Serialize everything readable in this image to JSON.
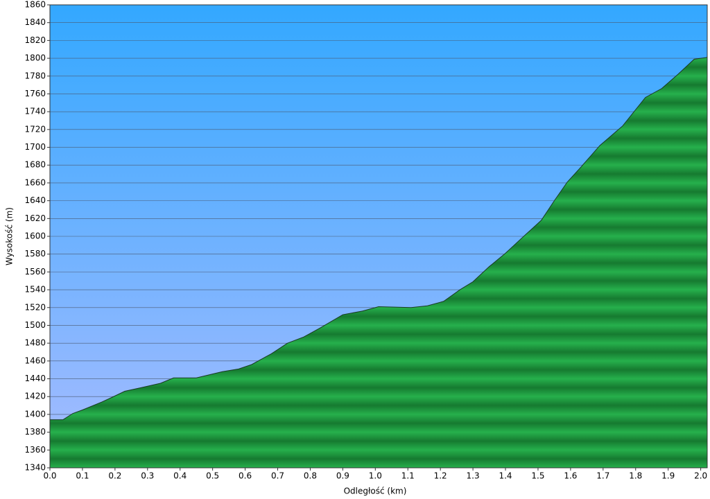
{
  "chart_data": {
    "type": "area",
    "x_label": "Odległość   (km)",
    "y_label": "Wysokość (m)",
    "x": [
      0,
      0.04,
      0.07,
      0.1,
      0.16,
      0.19,
      0.23,
      0.28,
      0.34,
      0.38,
      0.45,
      0.53,
      0.58,
      0.62,
      0.68,
      0.73,
      0.78,
      0.83,
      0.9,
      0.96,
      1.01,
      1.11,
      1.16,
      1.21,
      1.26,
      1.3,
      1.35,
      1.4,
      1.45,
      1.51,
      1.55,
      1.59,
      1.63,
      1.69,
      1.76,
      1.83,
      1.88,
      1.93,
      1.98,
      2.02
    ],
    "values": [
      1394,
      1394,
      1401,
      1405,
      1414,
      1419,
      1426,
      1430,
      1435,
      1441,
      1441,
      1448,
      1451,
      1456,
      1468,
      1480,
      1487,
      1497,
      1512,
      1516,
      1521,
      1520,
      1522,
      1527,
      1540,
      1549,
      1566,
      1581,
      1598,
      1618,
      1640,
      1661,
      1677,
      1702,
      1724,
      1756,
      1766,
      1782,
      1799,
      1801
    ],
    "color": "#22a845",
    "xlim": [
      0,
      2.02
    ],
    "ylim": [
      1340,
      1860
    ],
    "xticks": [
      {
        "value": 0,
        "label": "0.0"
      },
      0.1,
      0.2,
      0.3,
      0.4,
      0.5,
      0.6,
      0.7,
      0.8,
      0.9,
      {
        "value": 1,
        "label": "1.0"
      },
      1.1,
      1.2,
      1.3,
      1.4,
      1.5,
      1.6,
      1.7,
      1.8,
      1.9,
      {
        "value": 2,
        "label": "2.0"
      }
    ],
    "yticks": [
      1340,
      1360,
      1380,
      1400,
      1420,
      1440,
      1460,
      1480,
      1500,
      1520,
      1540,
      1560,
      1580,
      1600,
      1620,
      1640,
      1660,
      1680,
      1700,
      1720,
      1740,
      1760,
      1780,
      1800,
      1820,
      1840,
      1860
    ],
    "grid": true
  }
}
